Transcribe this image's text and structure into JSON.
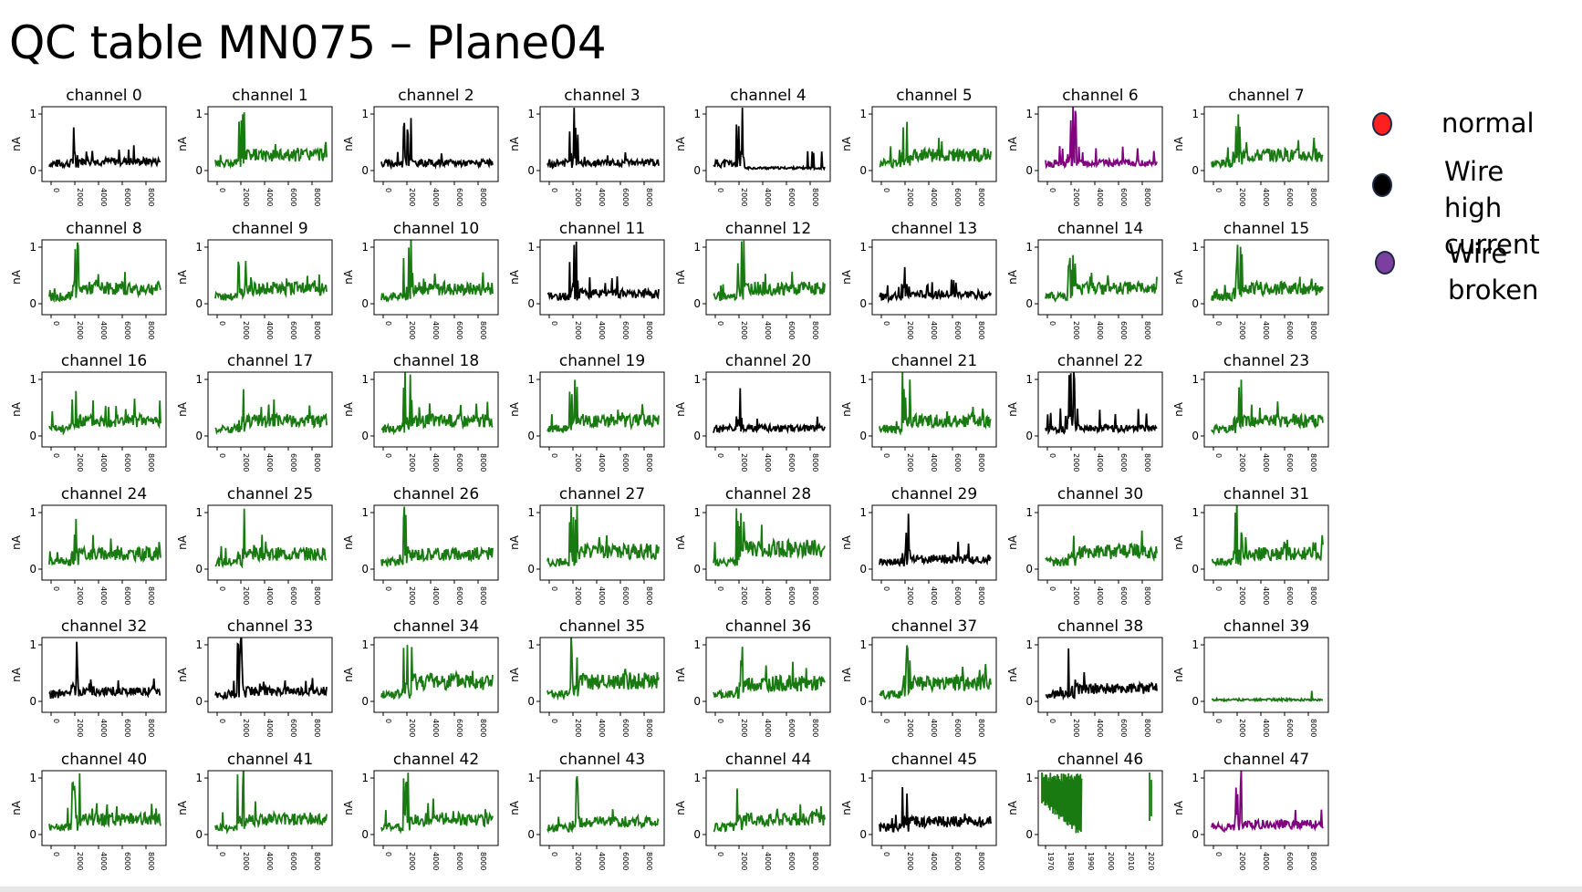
{
  "title": "QC table MN075 – Plane04",
  "legend": [
    {
      "label": "normal",
      "color": "#ff1f1f"
    },
    {
      "label": "Wire high\ncurrent",
      "color": "#000000"
    },
    {
      "label": "Wire\nbroken",
      "color": "#7b3fa0"
    }
  ],
  "colors": {
    "normal": "#1a7a12",
    "high": "#000000",
    "broken": "#800080"
  },
  "chart_data": {
    "type": "line",
    "ylabel": "nA",
    "yticks": [
      "0",
      "1"
    ],
    "xticks": [
      "0",
      "2000",
      "4000",
      "6000",
      "8000"
    ],
    "xticks_alt": [
      "1970",
      "1980",
      "1990",
      "2000",
      "2010",
      "2020"
    ],
    "panels": [
      {
        "title": "channel 0",
        "status": "high",
        "level": 0.18
      },
      {
        "title": "channel 1",
        "status": "normal",
        "level": 0.3
      },
      {
        "title": "channel 2",
        "status": "high",
        "level": 0.15
      },
      {
        "title": "channel 3",
        "status": "high",
        "level": 0.15
      },
      {
        "title": "channel 4",
        "status": "high",
        "level": 0.05
      },
      {
        "title": "channel 5",
        "status": "normal",
        "level": 0.3
      },
      {
        "title": "channel 6",
        "status": "broken",
        "level": 0.15
      },
      {
        "title": "channel 7",
        "status": "normal",
        "level": 0.3
      },
      {
        "title": "channel 8",
        "status": "normal",
        "level": 0.3
      },
      {
        "title": "channel 9",
        "status": "normal",
        "level": 0.3
      },
      {
        "title": "channel 10",
        "status": "normal",
        "level": 0.3
      },
      {
        "title": "channel 11",
        "status": "high",
        "level": 0.2
      },
      {
        "title": "channel 12",
        "status": "normal",
        "level": 0.3
      },
      {
        "title": "channel 13",
        "status": "high",
        "level": 0.18
      },
      {
        "title": "channel 14",
        "status": "normal",
        "level": 0.3
      },
      {
        "title": "channel 15",
        "status": "normal",
        "level": 0.3
      },
      {
        "title": "channel 16",
        "status": "normal",
        "level": 0.3
      },
      {
        "title": "channel 17",
        "status": "normal",
        "level": 0.3
      },
      {
        "title": "channel 18",
        "status": "normal",
        "level": 0.3
      },
      {
        "title": "channel 19",
        "status": "normal",
        "level": 0.3
      },
      {
        "title": "channel 20",
        "status": "high",
        "level": 0.15
      },
      {
        "title": "channel 21",
        "status": "normal",
        "level": 0.3
      },
      {
        "title": "channel 22",
        "status": "high",
        "level": 0.15
      },
      {
        "title": "channel 23",
        "status": "normal",
        "level": 0.3
      },
      {
        "title": "channel 24",
        "status": "normal",
        "level": 0.3
      },
      {
        "title": "channel 25",
        "status": "normal",
        "level": 0.3
      },
      {
        "title": "channel 26",
        "status": "normal",
        "level": 0.3
      },
      {
        "title": "channel 27",
        "status": "normal",
        "level": 0.35
      },
      {
        "title": "channel 28",
        "status": "normal",
        "level": 0.4
      },
      {
        "title": "channel 29",
        "status": "high",
        "level": 0.2
      },
      {
        "title": "channel 30",
        "status": "normal",
        "level": 0.35
      },
      {
        "title": "channel 31",
        "status": "normal",
        "level": 0.3
      },
      {
        "title": "channel 32",
        "status": "high",
        "level": 0.2
      },
      {
        "title": "channel 33",
        "status": "high",
        "level": 0.2
      },
      {
        "title": "channel 34",
        "status": "normal",
        "level": 0.4
      },
      {
        "title": "channel 35",
        "status": "normal",
        "level": 0.4
      },
      {
        "title": "channel 36",
        "status": "normal",
        "level": 0.35
      },
      {
        "title": "channel 37",
        "status": "normal",
        "level": 0.35
      },
      {
        "title": "channel 38",
        "status": "high",
        "level": 0.25
      },
      {
        "title": "channel 39",
        "status": "normal",
        "level": 0.02
      },
      {
        "title": "channel 40",
        "status": "normal",
        "level": 0.3
      },
      {
        "title": "channel 41",
        "status": "normal",
        "level": 0.3
      },
      {
        "title": "channel 42",
        "status": "normal",
        "level": 0.3
      },
      {
        "title": "channel 43",
        "status": "normal",
        "level": 0.25
      },
      {
        "title": "channel 44",
        "status": "normal",
        "level": 0.3
      },
      {
        "title": "channel 45",
        "status": "high",
        "level": 0.25
      },
      {
        "title": "channel 46",
        "status": "normal",
        "level": 0.7
      },
      {
        "title": "channel 47",
        "status": "broken",
        "level": 0.2
      }
    ]
  }
}
